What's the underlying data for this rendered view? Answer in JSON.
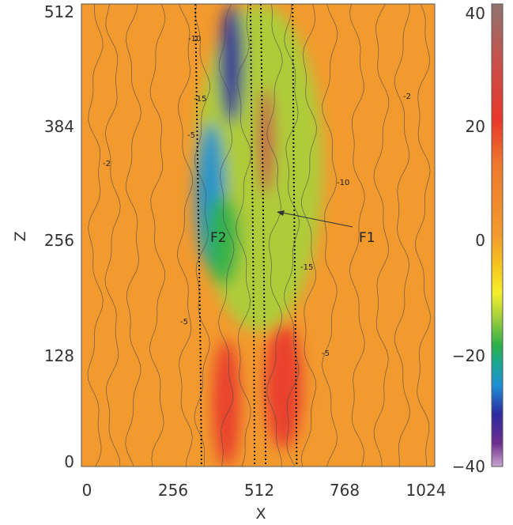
{
  "chart_data": {
    "type": "heatmap",
    "xlabel": "X",
    "ylabel": "Z",
    "xlim": [
      0,
      1024
    ],
    "ylim": [
      0,
      512
    ],
    "x_ticks": [
      "0",
      "256",
      "512",
      "768",
      "1024"
    ],
    "y_ticks": [
      "0",
      "128",
      "256",
      "384",
      "512"
    ],
    "colorbar": {
      "range": [
        -40,
        40
      ],
      "ticks": [
        "40",
        "20",
        "0",
        "−20",
        "−40"
      ],
      "stops": [
        {
          "value": -40,
          "color": "#c9a6cf"
        },
        {
          "value": -36,
          "color": "#6f2e8f"
        },
        {
          "value": -31,
          "color": "#2c2a9e"
        },
        {
          "value": -26,
          "color": "#1e8fd6"
        },
        {
          "value": -22,
          "color": "#1aa98f"
        },
        {
          "value": -19,
          "color": "#2fb049"
        },
        {
          "value": -14,
          "color": "#a7d13b"
        },
        {
          "value": -10,
          "color": "#f5ef2a"
        },
        {
          "value": -5,
          "color": "#f6c21f"
        },
        {
          "value": 0,
          "color": "#f29a2e"
        },
        {
          "value": 12,
          "color": "#ee7a2c"
        },
        {
          "value": 20,
          "color": "#e9372b"
        },
        {
          "value": 30,
          "color": "#c9504a"
        },
        {
          "value": 40,
          "color": "#8f7470"
        }
      ]
    },
    "contour_labels": [
      "-10",
      "-15",
      "-5",
      "-2",
      "-10",
      "-15",
      "-5",
      "-2",
      "-5"
    ],
    "fault_lines_x": [
      [
        330,
        335,
        340,
        345,
        348
      ],
      [
        490,
        493,
        497,
        500,
        502
      ],
      [
        520,
        525,
        530,
        534
      ],
      [
        612,
        615,
        620,
        624
      ]
    ],
    "regions": [
      {
        "value": -12,
        "x": [
          330,
          700
        ],
        "z": [
          150,
          512
        ]
      },
      {
        "value": -30,
        "x": [
          400,
          470
        ],
        "z": [
          380,
          512
        ]
      },
      {
        "value": -28,
        "x": [
          330,
          420
        ],
        "z": [
          220,
          380
        ]
      },
      {
        "value": -20,
        "x": [
          360,
          460
        ],
        "z": [
          200,
          300
        ]
      },
      {
        "value": 22,
        "x": [
          380,
          460
        ],
        "z": [
          0,
          140
        ]
      },
      {
        "value": 18,
        "x": [
          530,
          640
        ],
        "z": [
          20,
          160
        ]
      },
      {
        "value": 28,
        "x": [
          510,
          560
        ],
        "z": [
          300,
          420
        ]
      }
    ]
  },
  "annotations": {
    "f1": "F1",
    "f2": "F2"
  }
}
